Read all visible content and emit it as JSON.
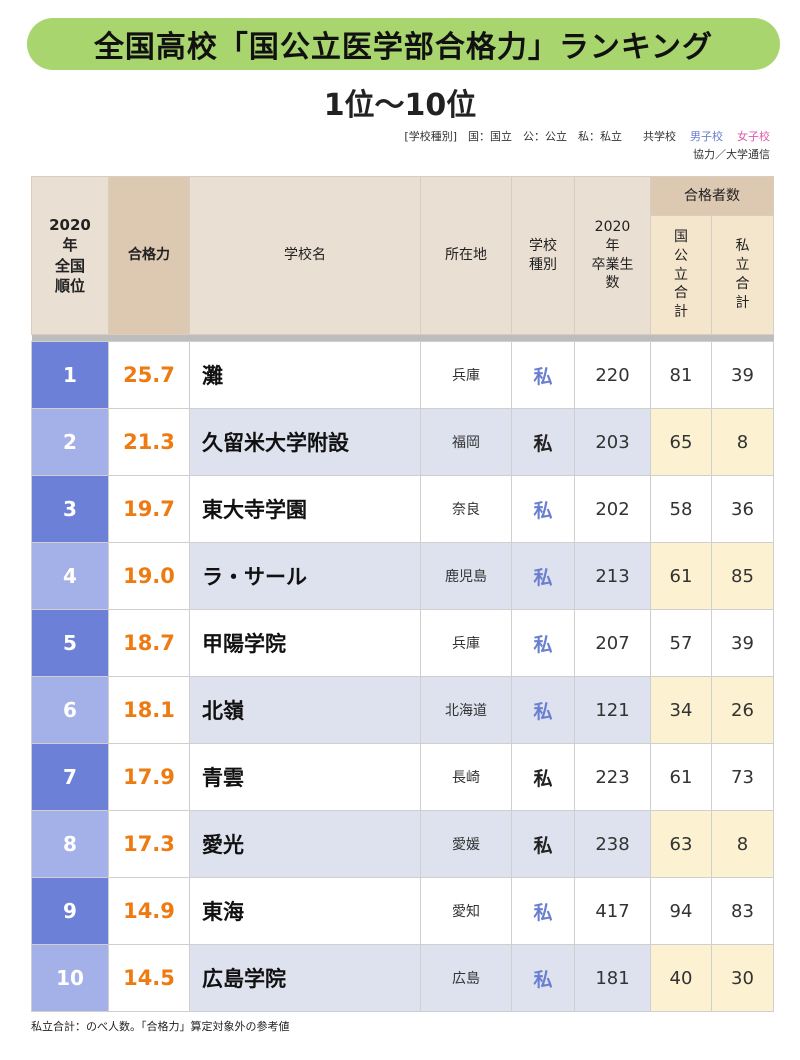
{
  "title": "全国高校「国公立医学部合格力」ランキング",
  "subtitle": "1位〜10位",
  "legend": {
    "school_type": "[学校種別]　国：国立　公：公立　私：私立",
    "coed": "共学校",
    "boys": "男子校",
    "girls": "女子校"
  },
  "cooperation": "協力／大学通信",
  "headers": {
    "rank": [
      "2020",
      "年",
      "全国",
      "順位"
    ],
    "power": "合格力",
    "name": "学校名",
    "location": "所在地",
    "type": [
      "学校",
      "種別"
    ],
    "graduates": [
      "2020",
      "年",
      "卒業生",
      "数"
    ],
    "passers": "合格者数",
    "public_total": [
      "国",
      "公",
      "立",
      "合",
      "計"
    ],
    "private_total": [
      "私",
      "立",
      "合",
      "計"
    ]
  },
  "colors": {
    "rank_odd": "#6b80d6",
    "rank_even": "#a4b1e8",
    "power_text": "#ee7a12",
    "boys_school": "#6a7fd0",
    "girls_school": "#e05ab0",
    "title_bar": "#a8d56e"
  },
  "rows": [
    {
      "rank": "1",
      "power": "25.7",
      "name": "灘",
      "location": "兵庫",
      "type": "私",
      "type_class": "boys",
      "graduates": "220",
      "public_total": "81",
      "private_total": "39"
    },
    {
      "rank": "2",
      "power": "21.3",
      "name": "久留米大学附設",
      "location": "福岡",
      "type": "私",
      "type_class": "coed",
      "graduates": "203",
      "public_total": "65",
      "private_total": "8"
    },
    {
      "rank": "3",
      "power": "19.7",
      "name": "東大寺学園",
      "location": "奈良",
      "type": "私",
      "type_class": "boys",
      "graduates": "202",
      "public_total": "58",
      "private_total": "36"
    },
    {
      "rank": "4",
      "power": "19.0",
      "name": "ラ・サール",
      "location": "鹿児島",
      "type": "私",
      "type_class": "boys",
      "graduates": "213",
      "public_total": "61",
      "private_total": "85"
    },
    {
      "rank": "5",
      "power": "18.7",
      "name": "甲陽学院",
      "location": "兵庫",
      "type": "私",
      "type_class": "boys",
      "graduates": "207",
      "public_total": "57",
      "private_total": "39"
    },
    {
      "rank": "6",
      "power": "18.1",
      "name": "北嶺",
      "location": "北海道",
      "type": "私",
      "type_class": "boys",
      "graduates": "121",
      "public_total": "34",
      "private_total": "26"
    },
    {
      "rank": "7",
      "power": "17.9",
      "name": "青雲",
      "location": "長崎",
      "type": "私",
      "type_class": "coed",
      "graduates": "223",
      "public_total": "61",
      "private_total": "73"
    },
    {
      "rank": "8",
      "power": "17.3",
      "name": "愛光",
      "location": "愛媛",
      "type": "私",
      "type_class": "coed",
      "graduates": "238",
      "public_total": "63",
      "private_total": "8"
    },
    {
      "rank": "9",
      "power": "14.9",
      "name": "東海",
      "location": "愛知",
      "type": "私",
      "type_class": "boys",
      "graduates": "417",
      "public_total": "94",
      "private_total": "83"
    },
    {
      "rank": "10",
      "power": "14.5",
      "name": "広島学院",
      "location": "広島",
      "type": "私",
      "type_class": "boys",
      "graduates": "181",
      "public_total": "40",
      "private_total": "30"
    }
  ],
  "footnote": "私立合計：のべ人数。「合格力」算定対象外の参考値"
}
